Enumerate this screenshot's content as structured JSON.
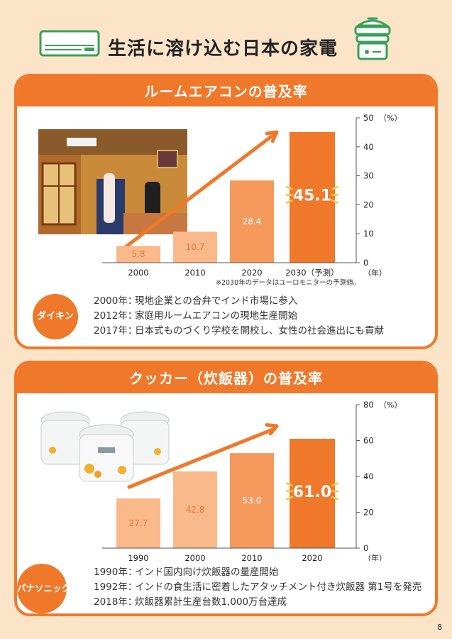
{
  "page": {
    "title": "生活に溶け込む日本の家電",
    "page_number": "8"
  },
  "colors": {
    "accent": "#f0782a",
    "bar_light": "#f9b98a",
    "bar_mid": "#f59a5c",
    "bar_dark": "#f0782a",
    "background": "#fce4c8"
  },
  "icons": [
    "air-conditioner-icon",
    "rice-steamer-icon"
  ],
  "aircon": {
    "heading": "ルームエアコンの普及率",
    "note": "※2030年のデータはユーロモニターの予測値。",
    "company": "ダイキン",
    "events": [
      {
        "year": "2000年：",
        "text": "現地企業との合弁でインド市場に参入"
      },
      {
        "year": "2012年：",
        "text": "家庭用ルームエアコンの現地生産開始"
      },
      {
        "year": "2017年：",
        "text": "日本式ものづくり学校を開校し、女性の社会進出にも貢献"
      }
    ]
  },
  "cooker": {
    "heading": "クッカー（炊飯器）の普及率",
    "company": "パナソニック",
    "events": [
      {
        "year": "1990年：",
        "text": "インド国内向け炊飯器の量産開始"
      },
      {
        "year": "1992年：",
        "text": "インドの食生活に密着したアタッチメント付き炊飯器 第1号を発売"
      },
      {
        "year": "2018年：",
        "text": "炊飯器累計生産台数1,000万台達成"
      }
    ]
  },
  "chart_data": [
    {
      "type": "bar",
      "title": "ルームエアコンの普及率",
      "categories": [
        "2000",
        "2010",
        "2020",
        "2030（予測）"
      ],
      "values": [
        5.8,
        10.7,
        28.4,
        45.1
      ],
      "value_labels": [
        "5.8",
        "10.7",
        "28.4",
        "45.1"
      ],
      "xlabel": "（年）",
      "ylabel": "（%）",
      "ylim": [
        0,
        50
      ],
      "yticks": [
        "0",
        "10",
        "20",
        "30",
        "40",
        "50"
      ],
      "y_axis_side": "right",
      "grid": false,
      "highlight_last": true
    },
    {
      "type": "bar",
      "title": "クッカー（炊飯器）の普及率",
      "categories": [
        "1990",
        "2000",
        "2010",
        "2020"
      ],
      "values": [
        27.7,
        42.8,
        53.0,
        61.0
      ],
      "value_labels": [
        "27.7",
        "42.8",
        "53.0",
        "61.0"
      ],
      "xlabel": "（年）",
      "ylabel": "（%）",
      "ylim": [
        0,
        80
      ],
      "yticks": [
        "0",
        "20",
        "40",
        "60",
        "80"
      ],
      "y_axis_side": "right",
      "grid": false,
      "highlight_last": true
    }
  ]
}
